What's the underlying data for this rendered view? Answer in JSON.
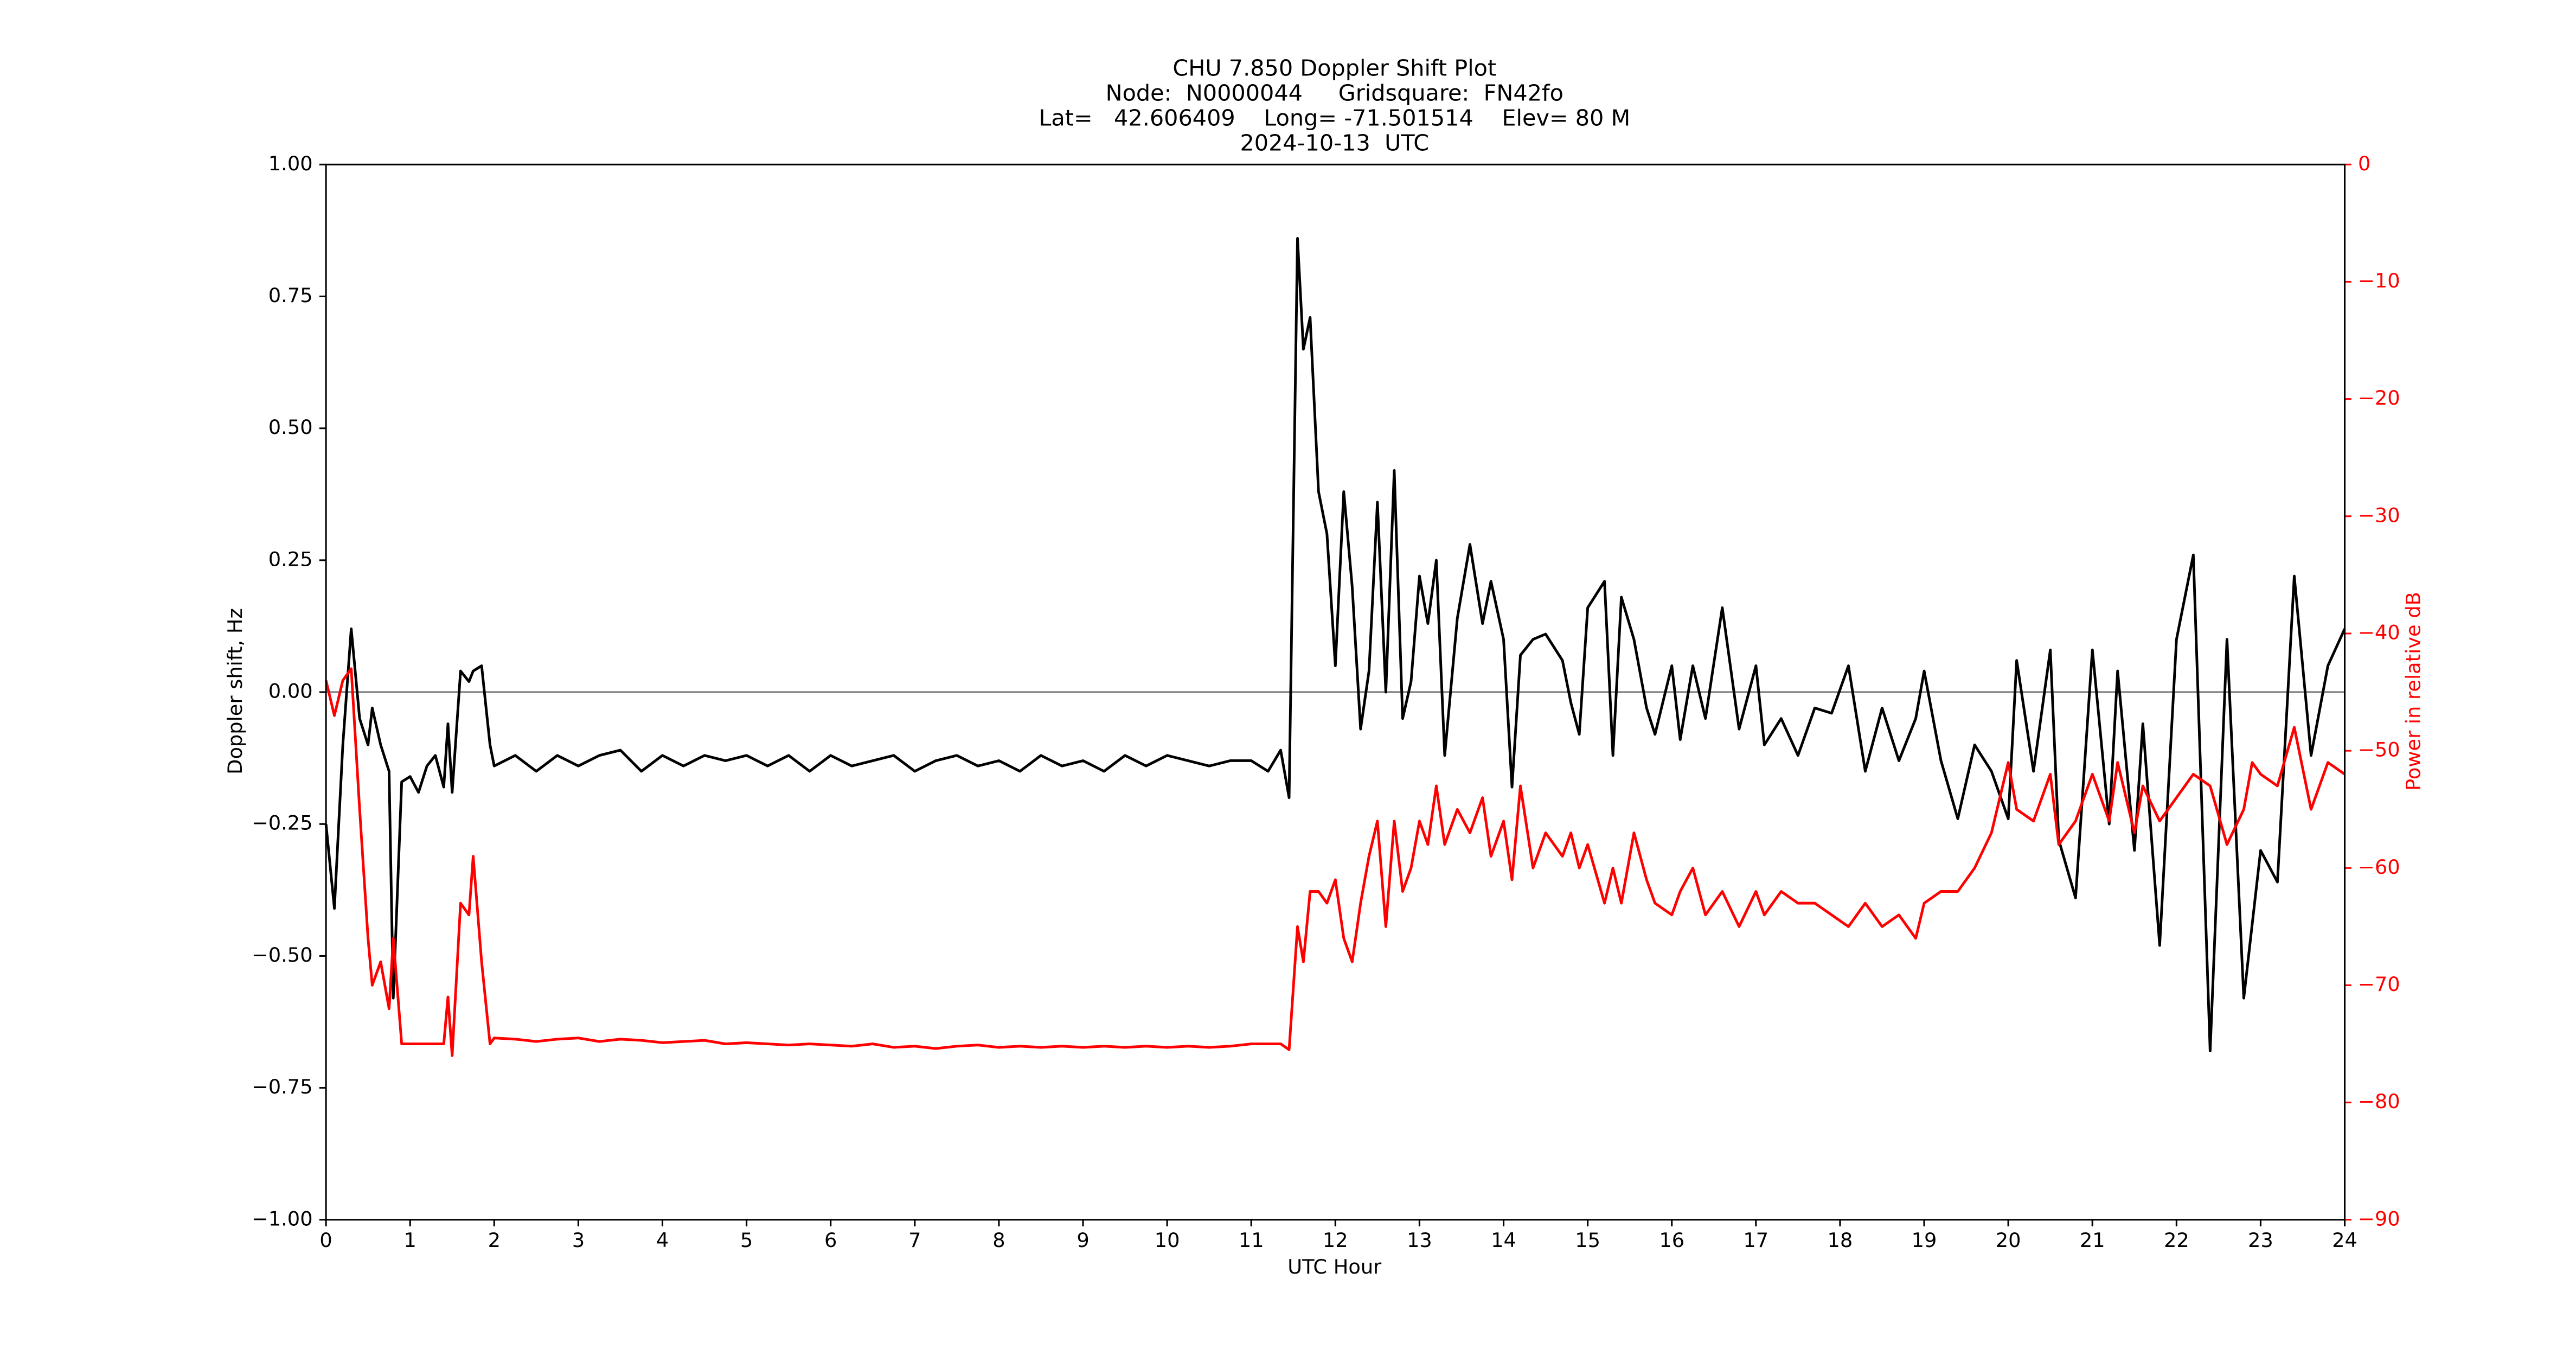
{
  "chart_data": {
    "type": "line",
    "title_lines": [
      "CHU 7.850 Doppler Shift Plot",
      "Node:  N0000044     Gridsquare:  FN42fo",
      "Lat=   42.606409    Long= -71.501514    Elev= 80 M",
      "2024-10-13  UTC"
    ],
    "xlabel": "UTC Hour",
    "ylabel": "Doppler shift, Hz",
    "y2label": "Power in relative dB",
    "zero_line": true,
    "xlim": [
      0,
      24
    ],
    "xticks": [
      0,
      1,
      2,
      3,
      4,
      5,
      6,
      7,
      8,
      9,
      10,
      11,
      12,
      13,
      14,
      15,
      16,
      17,
      18,
      19,
      20,
      21,
      22,
      23,
      24
    ],
    "ylim": [
      -1,
      1
    ],
    "yticks": [
      {
        "value": -1,
        "label": "−1.00"
      },
      {
        "value": -0.75,
        "label": "−0.75"
      },
      {
        "value": -0.5,
        "label": "−0.50"
      },
      {
        "value": -0.25,
        "label": "−0.25"
      },
      {
        "value": 0,
        "label": "0.00"
      },
      {
        "value": 0.25,
        "label": "0.25"
      },
      {
        "value": 0.5,
        "label": "0.50"
      },
      {
        "value": 0.75,
        "label": "0.75"
      },
      {
        "value": 1,
        "label": "1.00"
      }
    ],
    "y2lim": [
      -90,
      0
    ],
    "y2ticks": [
      {
        "value": -90,
        "label": "−90"
      },
      {
        "value": -80,
        "label": "−80"
      },
      {
        "value": -70,
        "label": "−70"
      },
      {
        "value": -60,
        "label": "−60"
      },
      {
        "value": -50,
        "label": "−50"
      },
      {
        "value": -40,
        "label": "−40"
      },
      {
        "value": -30,
        "label": "−30"
      },
      {
        "value": -20,
        "label": "−20"
      },
      {
        "value": -10,
        "label": "−10"
      },
      0
    ],
    "x": [
      0,
      0.1,
      0.2,
      0.3,
      0.4,
      0.5,
      0.55,
      0.65,
      0.75,
      0.8,
      0.9,
      1.0,
      1.1,
      1.2,
      1.3,
      1.4,
      1.45,
      1.5,
      1.6,
      1.7,
      1.75,
      1.85,
      1.95,
      2.0,
      2.25,
      2.5,
      2.75,
      3.0,
      3.25,
      3.5,
      3.75,
      4.0,
      4.25,
      4.5,
      4.75,
      5.0,
      5.25,
      5.5,
      5.75,
      6.0,
      6.25,
      6.5,
      6.75,
      7.0,
      7.25,
      7.5,
      7.75,
      8.0,
      8.25,
      8.5,
      8.75,
      9.0,
      9.25,
      9.5,
      9.75,
      10.0,
      10.25,
      10.5,
      10.75,
      11.0,
      11.2,
      11.35,
      11.45,
      11.55,
      11.62,
      11.7,
      11.8,
      11.9,
      12.0,
      12.1,
      12.2,
      12.3,
      12.4,
      12.5,
      12.6,
      12.7,
      12.8,
      12.9,
      13.0,
      13.1,
      13.2,
      13.3,
      13.45,
      13.6,
      13.75,
      13.85,
      14.0,
      14.1,
      14.2,
      14.35,
      14.5,
      14.7,
      14.8,
      14.9,
      15.0,
      15.2,
      15.3,
      15.4,
      15.55,
      15.7,
      15.8,
      16.0,
      16.1,
      16.25,
      16.4,
      16.6,
      16.8,
      17.0,
      17.1,
      17.3,
      17.5,
      17.7,
      17.9,
      18.1,
      18.3,
      18.5,
      18.7,
      18.9,
      19.0,
      19.2,
      19.4,
      19.6,
      19.8,
      20.0,
      20.1,
      20.3,
      20.5,
      20.6,
      20.8,
      21.0,
      21.2,
      21.3,
      21.5,
      21.6,
      21.8,
      22.0,
      22.2,
      22.4,
      22.6,
      22.8,
      22.9,
      23.0,
      23.2,
      23.4,
      23.6,
      23.8,
      24.0
    ],
    "series": [
      {
        "color": "#000000",
        "values": [
          -0.25,
          -0.41,
          -0.1,
          0.12,
          -0.05,
          -0.1,
          -0.03,
          -0.1,
          -0.15,
          -0.58,
          -0.17,
          -0.16,
          -0.19,
          -0.14,
          -0.12,
          -0.18,
          -0.06,
          -0.19,
          0.04,
          0.02,
          0.04,
          0.05,
          -0.1,
          -0.14,
          -0.12,
          -0.15,
          -0.12,
          -0.14,
          -0.12,
          -0.11,
          -0.15,
          -0.12,
          -0.14,
          -0.12,
          -0.13,
          -0.12,
          -0.14,
          -0.12,
          -0.15,
          -0.12,
          -0.14,
          -0.13,
          -0.12,
          -0.15,
          -0.13,
          -0.12,
          -0.14,
          -0.13,
          -0.15,
          -0.12,
          -0.14,
          -0.13,
          -0.15,
          -0.12,
          -0.14,
          -0.12,
          -0.13,
          -0.14,
          -0.13,
          -0.13,
          -0.15,
          -0.11,
          -0.2,
          0.86,
          0.65,
          0.71,
          0.38,
          0.3,
          0.05,
          0.38,
          0.2,
          -0.07,
          0.04,
          0.36,
          0.0,
          0.42,
          -0.05,
          0.02,
          0.22,
          0.13,
          0.25,
          -0.12,
          0.14,
          0.28,
          0.13,
          0.21,
          0.1,
          -0.18,
          0.07,
          0.1,
          0.11,
          0.06,
          -0.02,
          -0.08,
          0.16,
          0.21,
          -0.12,
          0.18,
          0.1,
          -0.03,
          -0.08,
          0.05,
          -0.09,
          0.05,
          -0.05,
          0.16,
          -0.07,
          0.05,
          -0.1,
          -0.05,
          -0.12,
          -0.03,
          -0.04,
          0.05,
          -0.15,
          -0.03,
          -0.13,
          -0.05,
          0.04,
          -0.13,
          -0.24,
          -0.1,
          -0.15,
          -0.24,
          0.06,
          -0.15,
          0.08,
          -0.28,
          -0.39,
          0.08,
          -0.25,
          0.04,
          -0.3,
          -0.06,
          -0.48,
          0.1,
          0.26,
          -0.68,
          0.1,
          -0.58,
          -0.44,
          -0.3,
          -0.36,
          0.22,
          -0.12,
          0.05,
          0.12
        ]
      },
      {
        "color": "#ff0000",
        "axis": "y2",
        "values": [
          -44,
          -47,
          -44,
          -43,
          -55,
          -66,
          -70,
          -68,
          -72,
          -66,
          -75,
          -75,
          -75,
          -75,
          -75,
          -75,
          -71,
          -76,
          -63,
          -64,
          -59,
          -68,
          -75,
          -74.5,
          -74.6,
          -74.8,
          -74.6,
          -74.5,
          -74.8,
          -74.6,
          -74.7,
          -74.9,
          -74.8,
          -74.7,
          -75,
          -74.9,
          -75,
          -75.1,
          -75,
          -75.1,
          -75.2,
          -75,
          -75.3,
          -75.2,
          -75.4,
          -75.2,
          -75.1,
          -75.3,
          -75.2,
          -75.3,
          -75.2,
          -75.3,
          -75.2,
          -75.3,
          -75.2,
          -75.3,
          -75.2,
          -75.3,
          -75.2,
          -75,
          -75,
          -75,
          -75.5,
          -65,
          -68,
          -62,
          -62,
          -63,
          -61,
          -66,
          -68,
          -63,
          -59,
          -56,
          -65,
          -56,
          -62,
          -60,
          -56,
          -58,
          -53,
          -58,
          -55,
          -57,
          -54,
          -59,
          -56,
          -61,
          -53,
          -60,
          -57,
          -59,
          -57,
          -60,
          -58,
          -63,
          -60,
          -63,
          -57,
          -61,
          -63,
          -64,
          -62,
          -60,
          -64,
          -62,
          -65,
          -62,
          -64,
          -62,
          -63,
          -63,
          -64,
          -65,
          -63,
          -65,
          -64,
          -66,
          -63,
          -62,
          -62,
          -60,
          -57,
          -51,
          -55,
          -56,
          -52,
          -58,
          -56,
          -52,
          -56,
          -51,
          -57,
          -53,
          -56,
          -54,
          -52,
          -53,
          -58,
          -55,
          -51,
          -52,
          -53,
          -48,
          -55,
          -51,
          -52
        ]
      }
    ]
  }
}
